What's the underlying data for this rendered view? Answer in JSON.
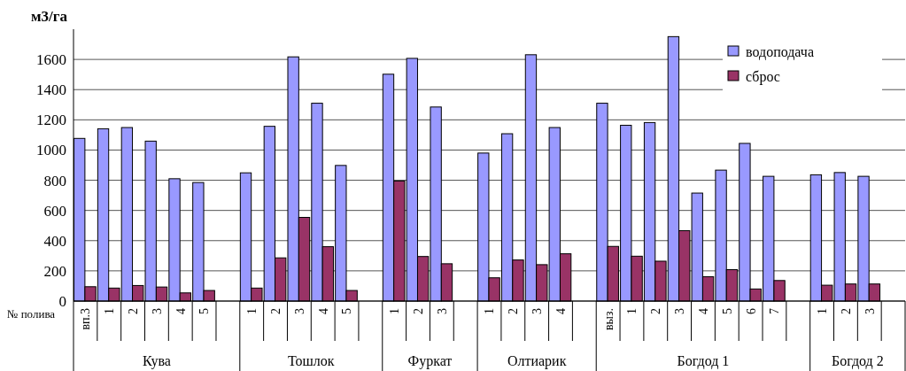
{
  "chart_data": {
    "type": "bar",
    "ylabel": "м3/га",
    "categories": [
      "вп.3",
      "1",
      "2",
      "3",
      "4",
      "5",
      null,
      "1",
      "2",
      "3",
      "4",
      "5",
      null,
      "1",
      "2",
      "3",
      null,
      "1",
      "2",
      "3",
      "4",
      null,
      "выз.",
      "1",
      "2",
      "3",
      "4",
      "5",
      "6",
      "7",
      null,
      "1",
      "2",
      "3",
      null
    ],
    "series": [
      {
        "name": "водоподача",
        "color": "#9999ff",
        "values": [
          1077,
          1141,
          1149,
          1059,
          810,
          785,
          null,
          849,
          1157,
          1617,
          1310,
          898,
          null,
          1502,
          1607,
          1285,
          null,
          980,
          1108,
          1631,
          1149,
          null,
          1310,
          1164,
          1182,
          1751,
          715,
          867,
          1044,
          826,
          null,
          836,
          851,
          826,
          null
        ]
      },
      {
        "name": "сброс",
        "color": "#993366",
        "values": [
          95,
          86,
          103,
          93,
          54,
          70,
          null,
          86,
          286,
          554,
          360,
          70,
          null,
          795,
          295,
          247,
          null,
          154,
          272,
          241,
          313,
          null,
          362,
          297,
          264,
          466,
          161,
          208,
          80,
          136,
          null,
          105,
          113,
          113,
          null
        ]
      }
    ],
    "ylim": [
      0,
      1800
    ],
    "yticks": [
      0,
      200,
      400,
      600,
      800,
      1000,
      1200,
      1400,
      1600
    ],
    "grid": "y",
    "legend": "top right",
    "annotations": [
      "№ полива",
      "Кува",
      "Тошлок",
      "Фуркат",
      "Олтиарик",
      "Богдод 1",
      "Богдод 2"
    ]
  }
}
